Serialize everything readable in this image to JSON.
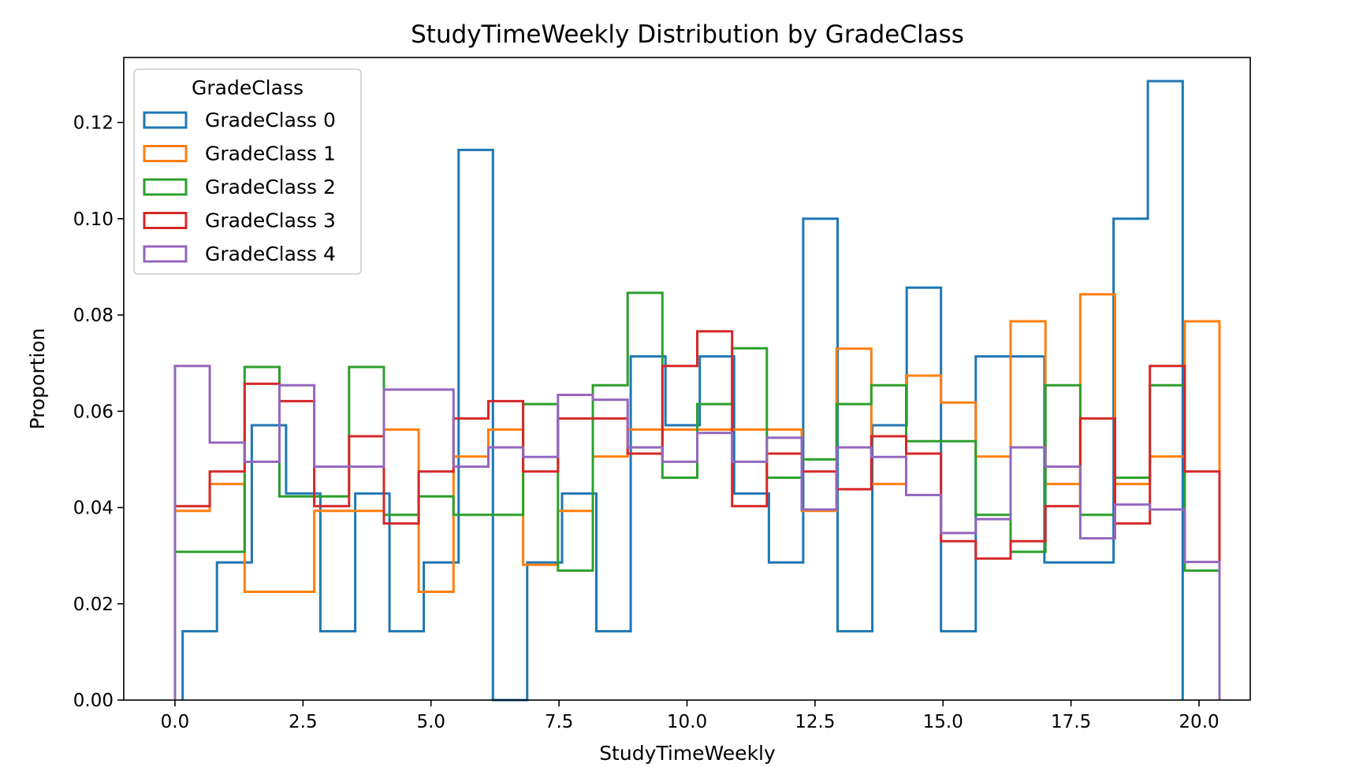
{
  "chart_data": {
    "type": "histogram-step",
    "title": "StudyTimeWeekly Distribution by GradeClass",
    "xlabel": "StudyTimeWeekly",
    "ylabel": "Proportion",
    "xlim": [
      -1.0,
      21.0
    ],
    "ylim": [
      0.0,
      0.1335
    ],
    "xticks": [
      0.0,
      2.5,
      5.0,
      7.5,
      10.0,
      12.5,
      15.0,
      17.5,
      20.0
    ],
    "xtick_labels": [
      "0.0",
      "2.5",
      "5.0",
      "7.5",
      "10.0",
      "12.5",
      "15.0",
      "17.5",
      "20.0"
    ],
    "yticks": [
      0.0,
      0.02,
      0.04,
      0.06,
      0.08,
      0.1,
      0.12
    ],
    "ytick_labels": [
      "0.00",
      "0.02",
      "0.04",
      "0.06",
      "0.08",
      "0.10",
      "0.12"
    ],
    "legend": {
      "title": "GradeClass",
      "placement": "top-left"
    },
    "series": [
      {
        "name": "GradeClass 0",
        "color": "#1f77b4",
        "edges": [
          0.15,
          0.82,
          1.5,
          2.17,
          2.84,
          3.52,
          4.19,
          4.86,
          5.54,
          6.21,
          6.88,
          7.56,
          8.23,
          8.9,
          9.58,
          10.25,
          10.92,
          11.6,
          12.27,
          12.94,
          13.62,
          14.29,
          14.96,
          15.64,
          16.31,
          16.98,
          17.66,
          18.33,
          19.0,
          19.68
        ],
        "values": [
          0.0143,
          0.0286,
          0.0571,
          0.0429,
          0.0143,
          0.0429,
          0.0143,
          0.0286,
          0.1143,
          0.0,
          0.0286,
          0.0429,
          0.0143,
          0.0714,
          0.0571,
          0.0714,
          0.0429,
          0.0286,
          0.1,
          0.0143,
          0.0571,
          0.0857,
          0.0143,
          0.0714,
          0.0714,
          0.0286,
          0.0286,
          0.1,
          0.1286
        ]
      },
      {
        "name": "GradeClass 1",
        "color": "#ff7f0e",
        "edges": [
          0.0,
          0.68,
          1.36,
          2.04,
          2.72,
          3.4,
          4.08,
          4.76,
          5.44,
          6.12,
          6.8,
          7.48,
          8.16,
          8.84,
          9.52,
          10.2,
          10.88,
          11.56,
          12.24,
          12.92,
          13.6,
          14.28,
          14.96,
          15.64,
          16.32,
          17.0,
          17.68,
          18.36,
          19.04,
          19.72
        ],
        "values": [
          0.0393,
          0.0449,
          0.0225,
          0.0225,
          0.0393,
          0.0393,
          0.0562,
          0.0225,
          0.0506,
          0.0562,
          0.0281,
          0.0393,
          0.0506,
          0.0562,
          0.0562,
          0.0562,
          0.0562,
          0.0562,
          0.0393,
          0.073,
          0.0449,
          0.0674,
          0.0618,
          0.0506,
          0.0787,
          0.0449,
          0.0843,
          0.0449,
          0.0506,
          0.0787
        ]
      },
      {
        "name": "GradeClass 2",
        "color": "#2ca02c",
        "edges": [
          0.0,
          0.68,
          1.36,
          2.04,
          2.72,
          3.4,
          4.08,
          4.76,
          5.44,
          6.12,
          6.8,
          7.48,
          8.16,
          8.84,
          9.52,
          10.2,
          10.88,
          11.56,
          12.24,
          12.92,
          13.6,
          14.28,
          14.96,
          15.64,
          16.32,
          17.0,
          17.68,
          18.36,
          19.04,
          19.72
        ],
        "values": [
          0.0308,
          0.0308,
          0.0692,
          0.0423,
          0.0423,
          0.0692,
          0.0385,
          0.0423,
          0.0385,
          0.0385,
          0.0615,
          0.0269,
          0.0654,
          0.0846,
          0.0462,
          0.0615,
          0.0731,
          0.0462,
          0.05,
          0.0615,
          0.0654,
          0.0538,
          0.0538,
          0.0385,
          0.0308,
          0.0654,
          0.0385,
          0.0462,
          0.0654,
          0.0269
        ]
      },
      {
        "name": "GradeClass 3",
        "color": "#d62728",
        "edges": [
          0.0,
          0.68,
          1.36,
          2.04,
          2.72,
          3.4,
          4.08,
          4.76,
          5.44,
          6.12,
          6.8,
          7.48,
          8.16,
          8.84,
          9.52,
          10.2,
          10.88,
          11.56,
          12.24,
          12.92,
          13.6,
          14.28,
          14.96,
          15.64,
          16.32,
          17.0,
          17.68,
          18.36,
          19.04,
          19.72
        ],
        "values": [
          0.0403,
          0.0475,
          0.0657,
          0.0621,
          0.0403,
          0.0548,
          0.0367,
          0.0475,
          0.0585,
          0.0621,
          0.0475,
          0.0585,
          0.0585,
          0.0512,
          0.0694,
          0.0766,
          0.0403,
          0.0512,
          0.0475,
          0.0438,
          0.0548,
          0.0512,
          0.033,
          0.0294,
          0.033,
          0.0403,
          0.0585,
          0.0367,
          0.0694,
          0.0475
        ]
      },
      {
        "name": "GradeClass 4",
        "color": "#9467bd",
        "edges": [
          0.0,
          0.68,
          1.36,
          2.04,
          2.72,
          3.4,
          4.08,
          4.76,
          5.44,
          6.12,
          6.8,
          7.48,
          8.16,
          8.84,
          9.52,
          10.2,
          10.88,
          11.56,
          12.24,
          12.92,
          13.6,
          14.28,
          14.96,
          15.64,
          16.32,
          17.0,
          17.68,
          18.36,
          19.04,
          19.72
        ],
        "values": [
          0.0694,
          0.0535,
          0.0495,
          0.0654,
          0.0485,
          0.0485,
          0.0645,
          0.0645,
          0.0485,
          0.0525,
          0.0505,
          0.0634,
          0.0624,
          0.0525,
          0.0495,
          0.0555,
          0.0495,
          0.0545,
          0.0396,
          0.0525,
          0.0505,
          0.0426,
          0.0347,
          0.0376,
          0.0525,
          0.0485,
          0.0336,
          0.0406,
          0.0396,
          0.0287
        ]
      }
    ]
  }
}
